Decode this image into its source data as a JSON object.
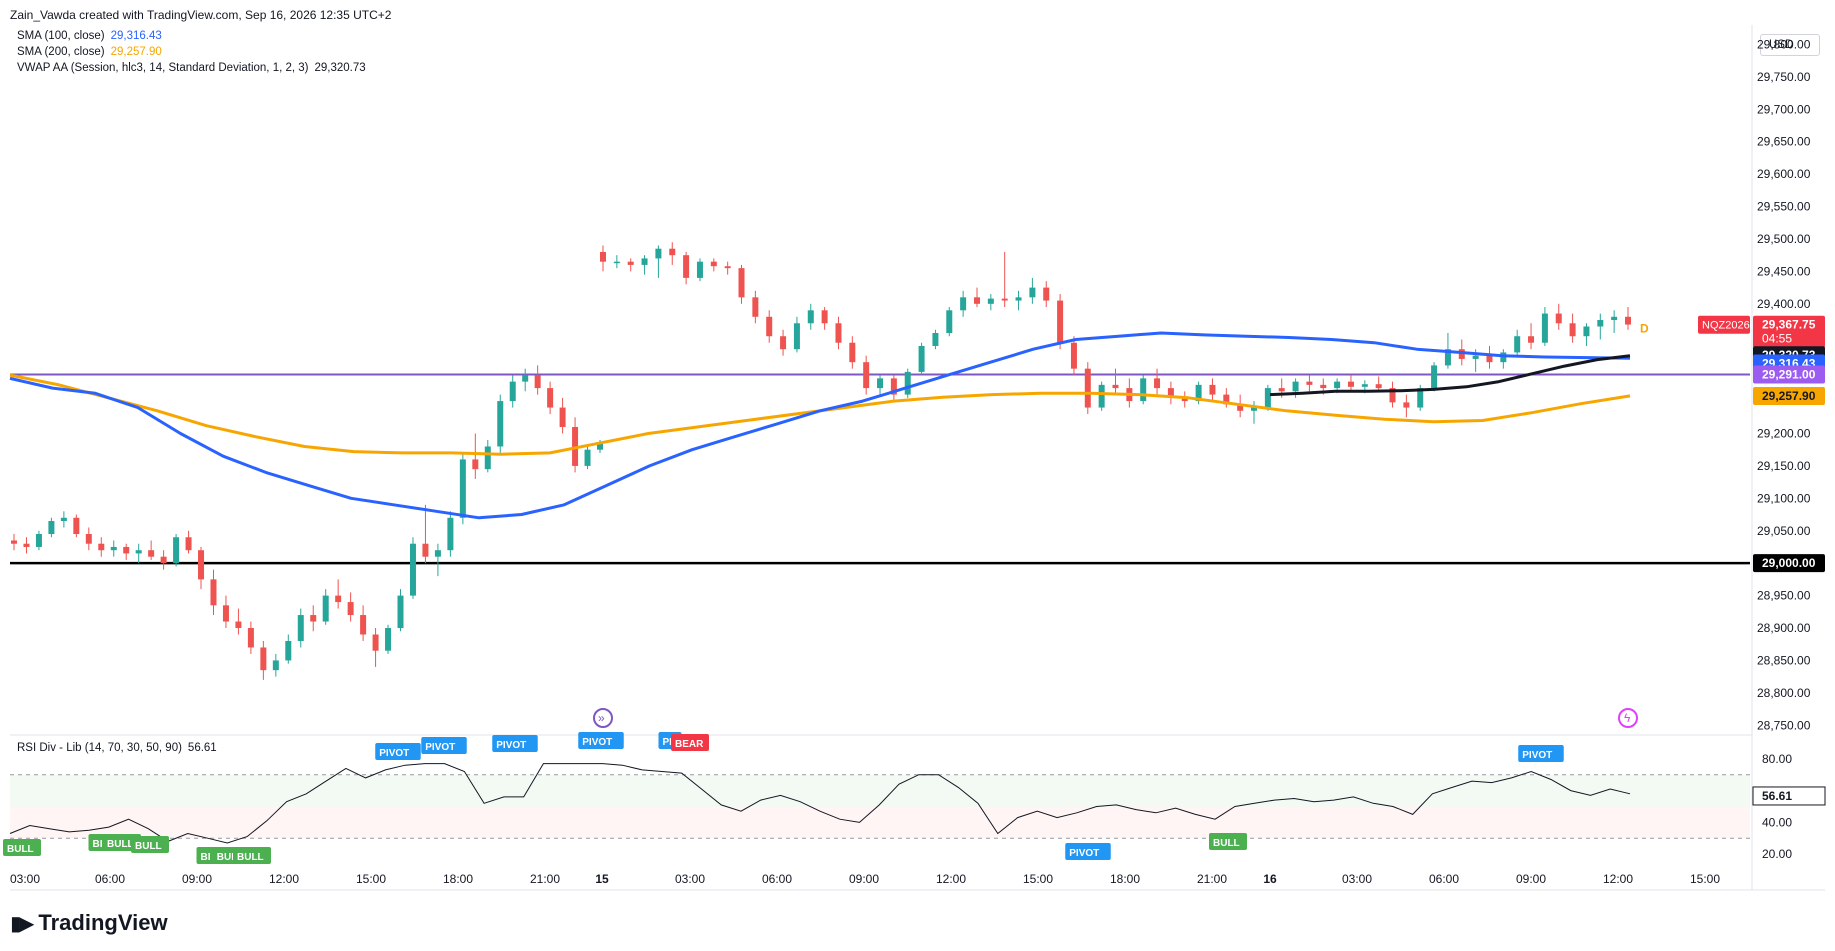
{
  "header": {
    "credit": "Zain_Vawda created with TradingView.com, Sep 16, 2026 12:35 UTC+2"
  },
  "legend": [
    {
      "label": "SMA (100, close)",
      "value": "29,316.43",
      "color": "#2962ff"
    },
    {
      "label": "SMA (200, close)",
      "value": "29,257.90",
      "color": "#f7a600"
    },
    {
      "label": "VWAP AA (Session, hlc3, 14, Standard Deviation, 1, 2, 3)",
      "value": "29,320.73",
      "color": "#131722"
    }
  ],
  "currency": "USD",
  "price_axis": {
    "ticks": [
      "29,800.00",
      "29,750.00",
      "29,700.00",
      "29,650.00",
      "29,600.00",
      "29,550.00",
      "29,500.00",
      "29,450.00",
      "29,400.00",
      "29,200.00",
      "29,150.00",
      "29,100.00",
      "29,050.00",
      "28,950.00",
      "28,900.00",
      "28,850.00",
      "28,800.00",
      "28,750.00"
    ],
    "tick_values": [
      29800,
      29750,
      29700,
      29650,
      29600,
      29550,
      29500,
      29450,
      29400,
      29200,
      29150,
      29100,
      29050,
      28950,
      28900,
      28850,
      28800,
      28750
    ],
    "range": [
      28735,
      29830
    ]
  },
  "labels": {
    "symbol": "NQZ2026",
    "last_price": "29,367.75",
    "countdown": "04:55",
    "vwap": "29,320.73",
    "sma100": "29,316.43",
    "purple_level": "29,291.00",
    "sma200": "29,257.90",
    "black_level": "29,000.00",
    "session_letter": "D"
  },
  "colors": {
    "up": "#26a69a",
    "down": "#ef5350",
    "sma100": "#2962ff",
    "sma200": "#f7a600",
    "vwap": "#131722",
    "purple": "#7e57c2",
    "bull": "#4caf50",
    "pivot": "#2196f3",
    "bear": "#f23645"
  },
  "time_axis": {
    "labels": [
      "03:00",
      "06:00",
      "09:00",
      "12:00",
      "15:00",
      "18:00",
      "21:00",
      "15",
      "03:00",
      "06:00",
      "09:00",
      "12:00",
      "15:00",
      "18:00",
      "21:00",
      "16",
      "03:00",
      "06:00",
      "09:00",
      "12:00",
      "15:00"
    ]
  },
  "rsi": {
    "legend": "RSI Div - Lib (14, 70, 30, 50, 90)",
    "value": "56.61",
    "ticks": [
      "80.00",
      "40.00",
      "20.00"
    ],
    "tick_values": [
      80,
      40,
      20
    ],
    "bands": [
      70,
      30
    ],
    "signals": [
      {
        "text": "BULL",
        "type": "bull"
      },
      {
        "text": "BI",
        "type": "bull"
      },
      {
        "text": "BULL",
        "type": "bull"
      },
      {
        "text": "BULL",
        "type": "bull"
      },
      {
        "text": "BI",
        "type": "bull"
      },
      {
        "text": "BUL",
        "type": "bull"
      },
      {
        "text": "BULL",
        "type": "bull"
      },
      {
        "text": "PIVOT",
        "type": "pivot"
      },
      {
        "text": "PIVOT",
        "type": "pivot"
      },
      {
        "text": "PIVOT",
        "type": "pivot"
      },
      {
        "text": "PIVOT",
        "type": "pivot"
      },
      {
        "text": "PI",
        "type": "pivot"
      },
      {
        "text": "BEAR",
        "type": "bear"
      },
      {
        "text": "PIVOT",
        "type": "pivot"
      },
      {
        "text": "BULL",
        "type": "bull"
      },
      {
        "text": "PIVOT",
        "type": "pivot"
      }
    ]
  },
  "chart_data": {
    "type": "candlestick",
    "symbol": "NQZ2026",
    "ylim": [
      28735,
      29830
    ],
    "horizontal_lines": [
      29291.0,
      29000.0
    ],
    "sma100": [
      29285,
      29270,
      29262,
      29240,
      29200,
      29165,
      29140,
      29120,
      29100,
      29090,
      29080,
      29070,
      29075,
      29090,
      29120,
      29150,
      29175,
      29195,
      29215,
      29235,
      29250,
      29270,
      29290,
      29310,
      29330,
      29345,
      29350,
      29355,
      29352,
      29350,
      29348,
      29345,
      29340,
      29330,
      29325,
      29320,
      29318,
      29317,
      29316
    ],
    "sma200": [
      29290,
      29275,
      29255,
      29235,
      29212,
      29195,
      29180,
      29172,
      29170,
      29170,
      29168,
      29170,
      29185,
      29200,
      29210,
      29220,
      29230,
      29240,
      29250,
      29256,
      29260,
      29262,
      29262,
      29260,
      29255,
      29245,
      29235,
      29228,
      29222,
      29218,
      29220,
      29232,
      29246,
      29258
    ],
    "vwap": [
      29260,
      29262,
      29265,
      29265,
      29266,
      29268,
      29272,
      29280,
      29292,
      29304,
      29314,
      29320
    ],
    "candles": [
      [
        29035,
        29045,
        29020,
        29030
      ],
      [
        29030,
        29040,
        29015,
        29025
      ],
      [
        29025,
        29050,
        29020,
        29045
      ],
      [
        29045,
        29070,
        29040,
        29065
      ],
      [
        29065,
        29080,
        29055,
        29070
      ],
      [
        29070,
        29075,
        29040,
        29045
      ],
      [
        29045,
        29055,
        29020,
        29030
      ],
      [
        29030,
        29040,
        29010,
        29020
      ],
      [
        29020,
        29035,
        29010,
        29025
      ],
      [
        29025,
        29030,
        29005,
        29015
      ],
      [
        29015,
        29030,
        29000,
        29020
      ],
      [
        29020,
        29035,
        29005,
        29010
      ],
      [
        29010,
        29020,
        28990,
        29000
      ],
      [
        29000,
        29045,
        28995,
        29040
      ],
      [
        29040,
        29050,
        29015,
        29020
      ],
      [
        29020,
        29025,
        28960,
        28975
      ],
      [
        28975,
        28990,
        28920,
        28935
      ],
      [
        28935,
        28950,
        28900,
        28910
      ],
      [
        28910,
        28930,
        28890,
        28900
      ],
      [
        28900,
        28910,
        28860,
        28870
      ],
      [
        28870,
        28880,
        28820,
        28835
      ],
      [
        28835,
        28860,
        28825,
        28850
      ],
      [
        28850,
        28890,
        28845,
        28880
      ],
      [
        28880,
        28930,
        28870,
        28920
      ],
      [
        28920,
        28935,
        28895,
        28910
      ],
      [
        28910,
        28960,
        28905,
        28950
      ],
      [
        28950,
        28975,
        28930,
        28940
      ],
      [
        28940,
        28955,
        28910,
        28920
      ],
      [
        28920,
        28935,
        28880,
        28890
      ],
      [
        28890,
        28900,
        28840,
        28865
      ],
      [
        28865,
        28905,
        28860,
        28900
      ],
      [
        28900,
        28960,
        28895,
        28950
      ],
      [
        28950,
        29040,
        28945,
        29030
      ],
      [
        29030,
        29090,
        29000,
        29010
      ],
      [
        29010,
        29030,
        28980,
        29020
      ],
      [
        29020,
        29080,
        29010,
        29070
      ],
      [
        29070,
        29170,
        29060,
        29160
      ],
      [
        29160,
        29200,
        29130,
        29145
      ],
      [
        29145,
        29190,
        29140,
        29180
      ],
      [
        29180,
        29260,
        29170,
        29250
      ],
      [
        29250,
        29290,
        29240,
        29280
      ],
      [
        29280,
        29300,
        29265,
        29290
      ],
      [
        29290,
        29305,
        29260,
        29270
      ],
      [
        29270,
        29280,
        29230,
        29240
      ],
      [
        29240,
        29255,
        29200,
        29210
      ],
      [
        29210,
        29225,
        29140,
        29150
      ],
      [
        29150,
        29180,
        29145,
        29175
      ],
      [
        29175,
        29190,
        29170,
        29185
      ],
      [
        29480,
        29490,
        29450,
        29465
      ],
      [
        29465,
        29475,
        29455,
        29465
      ],
      [
        29465,
        29470,
        29450,
        29460
      ],
      [
        29460,
        29475,
        29445,
        29470
      ],
      [
        29470,
        29490,
        29440,
        29485
      ],
      [
        29485,
        29495,
        29460,
        29475
      ],
      [
        29475,
        29480,
        29430,
        29440
      ],
      [
        29440,
        29470,
        29435,
        29465
      ],
      [
        29465,
        29470,
        29450,
        29458
      ],
      [
        29458,
        29465,
        29445,
        29455
      ],
      [
        29455,
        29460,
        29400,
        29410
      ],
      [
        29410,
        29420,
        29370,
        29380
      ],
      [
        29380,
        29390,
        29340,
        29350
      ],
      [
        29350,
        29360,
        29320,
        29330
      ],
      [
        29330,
        29380,
        29325,
        29370
      ],
      [
        29370,
        29400,
        29360,
        29390
      ],
      [
        29390,
        29395,
        29360,
        29370
      ],
      [
        29370,
        29380,
        29330,
        29340
      ],
      [
        29340,
        29350,
        29300,
        29310
      ],
      [
        29310,
        29320,
        29260,
        29270
      ],
      [
        29270,
        29290,
        29260,
        29285
      ],
      [
        29285,
        29290,
        29250,
        29260
      ],
      [
        29260,
        29300,
        29255,
        29295
      ],
      [
        29295,
        29340,
        29290,
        29335
      ],
      [
        29335,
        29360,
        29330,
        29355
      ],
      [
        29355,
        29395,
        29350,
        29390
      ],
      [
        29390,
        29420,
        29380,
        29410
      ],
      [
        29410,
        29425,
        29395,
        29400
      ],
      [
        29400,
        29415,
        29390,
        29408
      ],
      [
        29408,
        29480,
        29395,
        29405
      ],
      [
        29405,
        29420,
        29390,
        29410
      ],
      [
        29410,
        29440,
        29400,
        29425
      ],
      [
        29425,
        29435,
        29395,
        29405
      ],
      [
        29405,
        29415,
        29330,
        29340
      ],
      [
        29340,
        29350,
        29290,
        29300
      ],
      [
        29300,
        29310,
        29230,
        29240
      ],
      [
        29240,
        29280,
        29235,
        29275
      ],
      [
        29275,
        29300,
        29260,
        29270
      ],
      [
        29270,
        29285,
        29240,
        29250
      ],
      [
        29250,
        29290,
        29245,
        29285
      ],
      [
        29285,
        29300,
        29260,
        29270
      ],
      [
        29270,
        29280,
        29245,
        29255
      ],
      [
        29255,
        29265,
        29240,
        29250
      ],
      [
        29250,
        29280,
        29245,
        29275
      ],
      [
        29275,
        29285,
        29250,
        29260
      ],
      [
        29260,
        29270,
        29240,
        29245
      ],
      [
        29245,
        29260,
        29225,
        29235
      ],
      [
        29235,
        29250,
        29215,
        29240
      ],
      [
        29240,
        29275,
        29235,
        29270
      ],
      [
        29270,
        29285,
        29255,
        29265
      ],
      [
        29265,
        29285,
        29255,
        29280
      ],
      [
        29280,
        29290,
        29265,
        29275
      ],
      [
        29275,
        29285,
        29260,
        29270
      ],
      [
        29270,
        29285,
        29262,
        29280
      ],
      [
        29280,
        29290,
        29265,
        29272
      ],
      [
        29272,
        29282,
        29262,
        29276
      ],
      [
        29276,
        29288,
        29266,
        29270
      ],
      [
        29270,
        29280,
        29240,
        29248
      ],
      [
        29248,
        29260,
        29225,
        29240
      ],
      [
        29240,
        29275,
        29235,
        29270
      ],
      [
        29270,
        29310,
        29265,
        29305
      ],
      [
        29305,
        29355,
        29300,
        29330
      ],
      [
        29330,
        29345,
        29305,
        29315
      ],
      [
        29315,
        29330,
        29295,
        29320
      ],
      [
        29320,
        29335,
        29300,
        29310
      ],
      [
        29310,
        29330,
        29300,
        29325
      ],
      [
        29325,
        29360,
        29320,
        29350
      ],
      [
        29350,
        29370,
        29330,
        29340
      ],
      [
        29340,
        29395,
        29335,
        29385
      ],
      [
        29385,
        29400,
        29360,
        29370
      ],
      [
        29370,
        29385,
        29340,
        29350
      ],
      [
        29350,
        29370,
        29335,
        29365
      ],
      [
        29365,
        29385,
        29345,
        29375
      ],
      [
        29375,
        29390,
        29355,
        29380
      ],
      [
        29380,
        29395,
        29360,
        29368
      ]
    ],
    "rsi": [
      33,
      38,
      36,
      34,
      35,
      37,
      42,
      36,
      28,
      33,
      30,
      27,
      31,
      41,
      53,
      58,
      66,
      74,
      68,
      73,
      76,
      77,
      77,
      72,
      52,
      56,
      56,
      77,
      77,
      77,
      77,
      76,
      73,
      72,
      71,
      61,
      51,
      47,
      54,
      57,
      53,
      47,
      42,
      40,
      51,
      64,
      70,
      70,
      62,
      52,
      33,
      43,
      47,
      43,
      46,
      50,
      51,
      48,
      46,
      49,
      45,
      42,
      50,
      52,
      54,
      55,
      53,
      54,
      56,
      52,
      50,
      45,
      58,
      62,
      66,
      65,
      68,
      72,
      67,
      60,
      57,
      61,
      58
    ]
  }
}
